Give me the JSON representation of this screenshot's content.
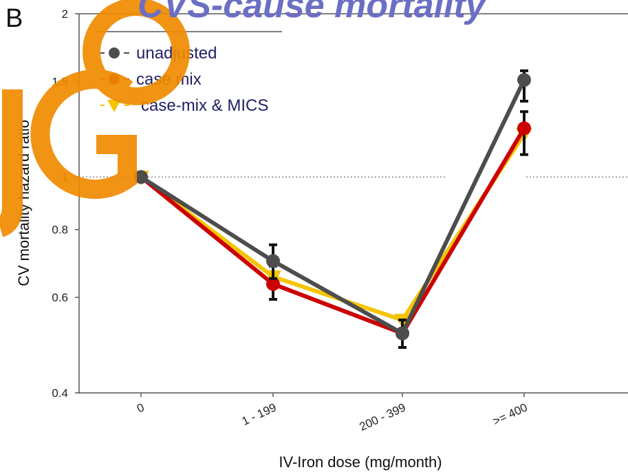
{
  "panel_letter": "B",
  "slide_title": "CVS-cause mortality",
  "watermark_text": "JGO",
  "colors": {
    "unadjusted": "#4d4d4d",
    "case_mix": "#cc0000",
    "case_mix_mics": "#f5c400",
    "watermark": "#f08a00",
    "title": "#6b6fc4",
    "legend_text": "#1f1f66"
  },
  "chart_data": {
    "type": "line",
    "xlabel": "IV-Iron dose (mg/month)",
    "ylabel": "CV mortality hazard ratio",
    "categories": [
      "0",
      "1 - 199",
      "200 - 399",
      ">= 400"
    ],
    "y_scale": "log",
    "ylim": [
      0.4,
      2
    ],
    "yticks": [
      {
        "value": 0.4,
        "label": "0.4"
      },
      {
        "value": 0.6,
        "label": "0.6"
      },
      {
        "value": 0.8,
        "label": "0.8"
      },
      {
        "value": 1,
        "label": "1"
      },
      {
        "value": 1.5,
        "label": "1.5"
      },
      {
        "value": 2,
        "label": "2"
      }
    ],
    "reference_line": 1,
    "legend_position": "top-left",
    "series": [
      {
        "name": "unadjusted",
        "marker": "circle",
        "color_key": "unadjusted",
        "values": [
          1.0,
          0.7,
          0.515,
          1.51
        ],
        "err_low": [
          null,
          0.65,
          0.485,
          1.38
        ],
        "err_high": [
          null,
          0.75,
          0.545,
          1.57
        ]
      },
      {
        "name": "case mix",
        "marker": "circle",
        "color_key": "case_mix",
        "values": [
          1.0,
          0.635,
          0.515,
          1.23
        ],
        "err_low": [
          null,
          0.595,
          0.485,
          1.1
        ],
        "err_high": [
          null,
          0.685,
          0.545,
          1.32
        ]
      },
      {
        "name": "case-mix & MICS",
        "marker": "triangle-down",
        "color_key": "case_mix_mics",
        "values": [
          1.0,
          0.655,
          0.545,
          1.2
        ],
        "err_low": [
          null,
          null,
          null,
          null
        ],
        "err_high": [
          null,
          null,
          null,
          null
        ]
      }
    ]
  }
}
